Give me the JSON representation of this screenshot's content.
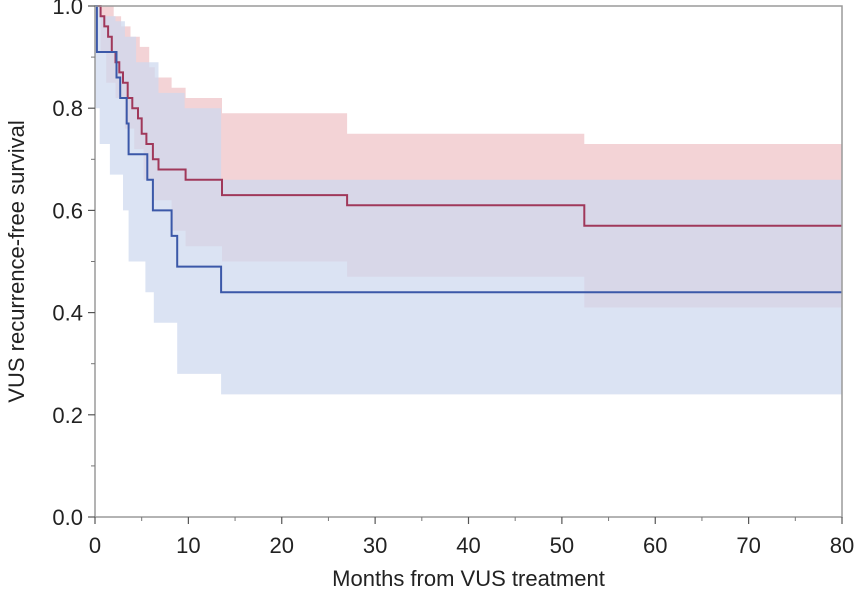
{
  "chart_data": {
    "type": "line",
    "subtype": "kaplan-meier step curves with confidence bands",
    "xlabel": "Months from VUS treatment",
    "ylabel": "VUS recurrence-free survival",
    "xlim": [
      0,
      80
    ],
    "ylim": [
      0,
      1.0
    ],
    "x_ticks": [
      0,
      10,
      20,
      30,
      40,
      50,
      60,
      70,
      80
    ],
    "x_tick_labels": [
      "0",
      "10",
      "20",
      "30",
      "40",
      "50",
      "60",
      "70",
      "80"
    ],
    "y_ticks": [
      0.0,
      0.2,
      0.4,
      0.6,
      0.8,
      1.0
    ],
    "y_tick_labels": [
      "0.0",
      "0.2",
      "0.4",
      "0.6",
      "0.8",
      "1.0"
    ],
    "grid": false,
    "legend": "none",
    "series": [
      {
        "color": "#a0385a",
        "band_color": "#eec2c6",
        "steps": [
          [
            0,
            1.0
          ],
          [
            0.6,
            0.98
          ],
          [
            1.0,
            0.96
          ],
          [
            1.4,
            0.94
          ],
          [
            1.8,
            0.91
          ],
          [
            2.2,
            0.89
          ],
          [
            2.6,
            0.87
          ],
          [
            3.0,
            0.85
          ],
          [
            3.5,
            0.82
          ],
          [
            4.0,
            0.8
          ],
          [
            4.6,
            0.78
          ],
          [
            5.0,
            0.75
          ],
          [
            5.5,
            0.73
          ],
          [
            6.2,
            0.7
          ],
          [
            6.8,
            0.68
          ],
          [
            9.7,
            0.66
          ],
          [
            13.6,
            0.63
          ],
          [
            27.0,
            0.61
          ],
          [
            52.4,
            0.57
          ],
          [
            80,
            0.57
          ]
        ],
        "ci_upper": [
          [
            0,
            1.0
          ],
          [
            1.0,
            1.0
          ],
          [
            2.0,
            0.98
          ],
          [
            2.8,
            0.96
          ],
          [
            3.8,
            0.94
          ],
          [
            4.8,
            0.92
          ],
          [
            5.8,
            0.88
          ],
          [
            6.4,
            0.86
          ],
          [
            8.2,
            0.84
          ],
          [
            9.7,
            0.82
          ],
          [
            13.6,
            0.79
          ],
          [
            27.0,
            0.75
          ],
          [
            52.4,
            0.73
          ],
          [
            80,
            0.71
          ]
        ],
        "ci_lower": [
          [
            0,
            1.0
          ],
          [
            0.6,
            0.91
          ],
          [
            1.2,
            0.85
          ],
          [
            2.2,
            0.82
          ],
          [
            3.2,
            0.76
          ],
          [
            4.2,
            0.72
          ],
          [
            5.2,
            0.66
          ],
          [
            6.2,
            0.62
          ],
          [
            8.2,
            0.56
          ],
          [
            9.7,
            0.53
          ],
          [
            13.6,
            0.5
          ],
          [
            27.0,
            0.47
          ],
          [
            52.4,
            0.41
          ],
          [
            80,
            0.41
          ]
        ]
      },
      {
        "color": "#3b58a8",
        "band_color": "#cdd8ef",
        "steps": [
          [
            0,
            1.0
          ],
          [
            0.2,
            0.91
          ],
          [
            2.3,
            0.86
          ],
          [
            2.7,
            0.82
          ],
          [
            3.4,
            0.77
          ],
          [
            3.6,
            0.71
          ],
          [
            5.6,
            0.66
          ],
          [
            6.2,
            0.6
          ],
          [
            8.2,
            0.55
          ],
          [
            8.8,
            0.49
          ],
          [
            13.5,
            0.44
          ],
          [
            80,
            0.44
          ]
        ],
        "ci_upper": [
          [
            0,
            1.0
          ],
          [
            0.6,
            0.98
          ],
          [
            2.2,
            0.97
          ],
          [
            3.2,
            0.94
          ],
          [
            4.4,
            0.89
          ],
          [
            6.8,
            0.83
          ],
          [
            9.6,
            0.8
          ],
          [
            13.5,
            0.66
          ],
          [
            80,
            0.66
          ]
        ],
        "ci_lower": [
          [
            0,
            0.8
          ],
          [
            0.5,
            0.73
          ],
          [
            1.6,
            0.67
          ],
          [
            3.0,
            0.6
          ],
          [
            3.6,
            0.5
          ],
          [
            5.4,
            0.44
          ],
          [
            6.3,
            0.38
          ],
          [
            8.8,
            0.28
          ],
          [
            13.5,
            0.24
          ],
          [
            80,
            0.24
          ]
        ]
      }
    ]
  }
}
